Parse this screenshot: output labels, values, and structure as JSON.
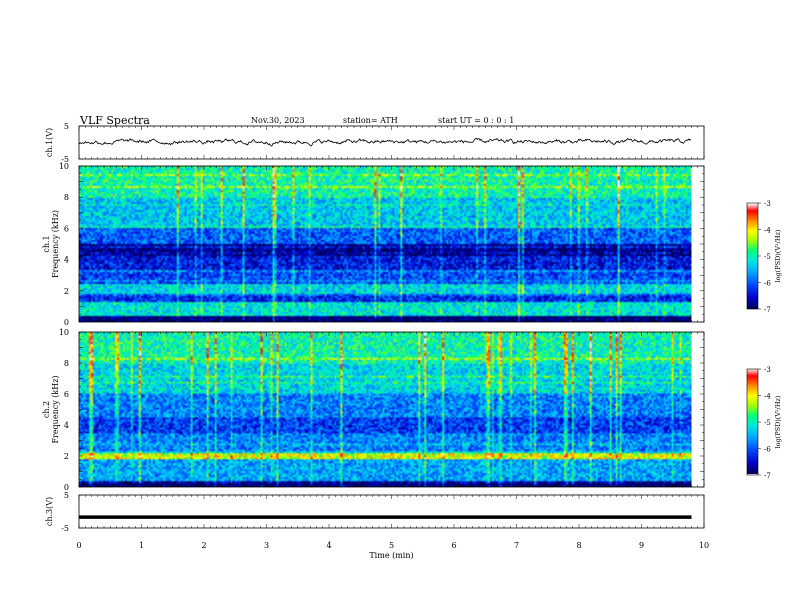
{
  "header": {
    "title": "VLF  Spectra",
    "date": "Nov.30, 2023",
    "station": "station= ATH",
    "start_ut": "start  UT  =    0  : 0   : 1"
  },
  "colors": {
    "spectrogram_scale": [
      "#00007a",
      "#0000c8",
      "#0046ff",
      "#00a0ff",
      "#00e6e6",
      "#00ff80",
      "#a0ff00",
      "#ffff00",
      "#ff8000",
      "#ff0000",
      "#ffffff"
    ]
  },
  "chart_data": [
    {
      "type": "line",
      "name": "ch1-waveform",
      "ylabel": "ch.1(V)",
      "yticks": [
        "5",
        "-5"
      ],
      "ylim": [
        -5,
        5
      ],
      "x_range_min": [
        0,
        9.8
      ],
      "approx_level": 0.2
    },
    {
      "type": "heatmap",
      "name": "ch1-spectrogram",
      "ylabel": "ch.1\nFrequency  (kHz)",
      "ylabel_channel": "ch.1",
      "ylabel_freq": "Frequency  (kHz)",
      "yticks": [
        "0",
        "2",
        "4",
        "6",
        "8",
        "10"
      ],
      "ylim_khz": [
        0,
        10
      ],
      "x_range_min": [
        0,
        9.8
      ],
      "colorbar": {
        "label": "log(PSD)(V²/Hz)",
        "ticks": [
          "-3",
          "-4",
          "-5",
          "-6",
          "-7"
        ],
        "range": [
          -7,
          -3
        ]
      },
      "bands": [
        {
          "f_khz": [
            0,
            0.3
          ],
          "level": -7
        },
        {
          "f_khz": [
            0.3,
            1.2
          ],
          "level": -5.2
        },
        {
          "f_khz": [
            1.2,
            1.8
          ],
          "level": -6.3
        },
        {
          "f_khz": [
            1.8,
            2.4
          ],
          "level": -5.3
        },
        {
          "f_khz": [
            2.4,
            3.3
          ],
          "level": -6.1
        },
        {
          "f_khz": [
            3.3,
            4.2
          ],
          "level": -6.4
        },
        {
          "f_khz": [
            4.2,
            5.0
          ],
          "level": -6.9
        },
        {
          "f_khz": [
            5.0,
            6.0
          ],
          "level": -6.0
        },
        {
          "f_khz": [
            6.0,
            8.0
          ],
          "level": -5.4
        },
        {
          "f_khz": [
            8.0,
            10.0
          ],
          "level": -5.0
        }
      ]
    },
    {
      "type": "heatmap",
      "name": "ch2-spectrogram",
      "ylabel_channel": "ch.2",
      "ylabel_freq": "Frequency  (kHz)",
      "yticks": [
        "0",
        "2",
        "4",
        "6",
        "8",
        "10"
      ],
      "ylim_khz": [
        0,
        10
      ],
      "x_range_min": [
        0,
        9.8
      ],
      "colorbar": {
        "label": "log(PSD)(V²/Hz)",
        "ticks": [
          "-3",
          "-4",
          "-5",
          "-6",
          "-7"
        ],
        "range": [
          -7,
          -3
        ]
      },
      "bands": [
        {
          "f_khz": [
            0,
            0.3
          ],
          "level": -7
        },
        {
          "f_khz": [
            0.3,
            1.8
          ],
          "level": -5.6
        },
        {
          "f_khz": [
            1.8,
            2.2
          ],
          "level": -4.2
        },
        {
          "f_khz": [
            2.2,
            3.5
          ],
          "level": -5.8
        },
        {
          "f_khz": [
            3.5,
            4.5
          ],
          "level": -6.2
        },
        {
          "f_khz": [
            4.5,
            6.0
          ],
          "level": -5.8
        },
        {
          "f_khz": [
            6.0,
            8.0
          ],
          "level": -5.3
        },
        {
          "f_khz": [
            8.0,
            10.0
          ],
          "level": -5.0
        }
      ]
    },
    {
      "type": "line",
      "name": "ch3-waveform",
      "ylabel": "ch.3(V)",
      "yticks": [
        "5",
        "-5"
      ],
      "ylim": [
        -5,
        5
      ],
      "x_range_min": [
        0,
        9.8
      ],
      "approx_level": -1.7
    }
  ],
  "xaxis": {
    "label": "Time  (min)",
    "ticks": [
      "0",
      "1",
      "2",
      "3",
      "4",
      "5",
      "6",
      "7",
      "8",
      "9",
      "10"
    ],
    "range": [
      0,
      10
    ]
  }
}
